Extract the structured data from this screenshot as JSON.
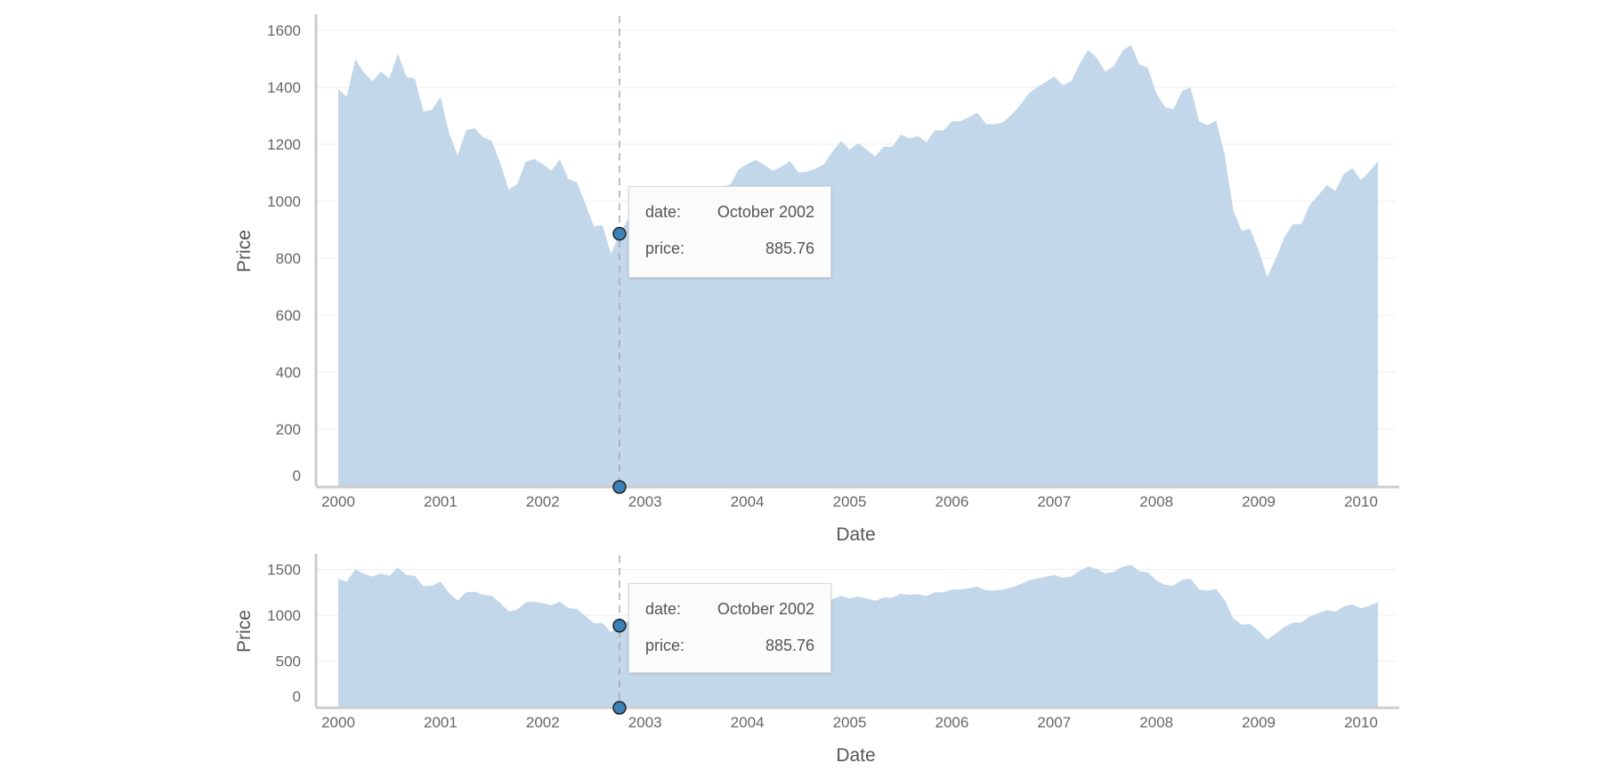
{
  "chart_data": [
    {
      "type": "area",
      "id": "main",
      "xlabel": "Date",
      "ylabel": "Price",
      "ylim": [
        0,
        1650
      ],
      "yticks": [
        0,
        200,
        400,
        600,
        800,
        1000,
        1200,
        1400,
        1600
      ],
      "xticks": [
        "2000",
        "2001",
        "2002",
        "2003",
        "2004",
        "2005",
        "2006",
        "2007",
        "2008",
        "2009",
        "2010"
      ],
      "grid": true,
      "fill_color": "#c2d7e9",
      "tooltip": {
        "date_label": "date:",
        "date_value": "October 2002",
        "price_label": "price:",
        "price_value": "885.76",
        "x": 2002.75,
        "y": 885.76
      }
    },
    {
      "type": "area",
      "id": "overview",
      "xlabel": "Date",
      "ylabel": "Price",
      "ylim": [
        0,
        1650
      ],
      "yticks": [
        0,
        500,
        1000,
        1500
      ],
      "xticks": [
        "2000",
        "2001",
        "2002",
        "2003",
        "2004",
        "2005",
        "2006",
        "2007",
        "2008",
        "2009",
        "2010"
      ],
      "grid": true,
      "fill_color": "#c2d7e9",
      "tooltip": {
        "date_label": "date:",
        "date_value": "October 2002",
        "price_label": "price:",
        "price_value": "885.76",
        "x": 2002.75,
        "y": 885.76
      }
    }
  ],
  "series": {
    "name": "",
    "x_start": 2000.0,
    "x_step_months": 1,
    "values": [
      1394,
      1366,
      1499,
      1452,
      1421,
      1455,
      1431,
      1518,
      1437,
      1430,
      1315,
      1321,
      1367,
      1240,
      1160,
      1249,
      1256,
      1224,
      1212,
      1134,
      1041,
      1060,
      1139,
      1148,
      1130,
      1107,
      1147,
      1077,
      1067,
      990,
      912,
      916,
      815,
      885,
      936,
      880,
      855,
      841,
      848,
      917,
      964,
      975,
      990,
      1008,
      996,
      1050,
      1058,
      1112,
      1131,
      1145,
      1127,
      1107,
      1121,
      1141,
      1101,
      1104,
      1114,
      1130,
      1174,
      1212,
      1181,
      1204,
      1181,
      1157,
      1192,
      1191,
      1234,
      1220,
      1229,
      1207,
      1249,
      1248,
      1280,
      1281,
      1295,
      1311,
      1271,
      1270,
      1277,
      1304,
      1336,
      1378,
      1401,
      1418,
      1438,
      1407,
      1421,
      1482,
      1531,
      1503,
      1455,
      1474,
      1527,
      1549,
      1481,
      1468,
      1378,
      1331,
      1323,
      1386,
      1400,
      1280,
      1267,
      1283,
      1165,
      969,
      896,
      903,
      826,
      735,
      798,
      873,
      919,
      920,
      987,
      1021,
      1057,
      1036,
      1096,
      1116,
      1074,
      1105,
      1141
    ]
  }
}
